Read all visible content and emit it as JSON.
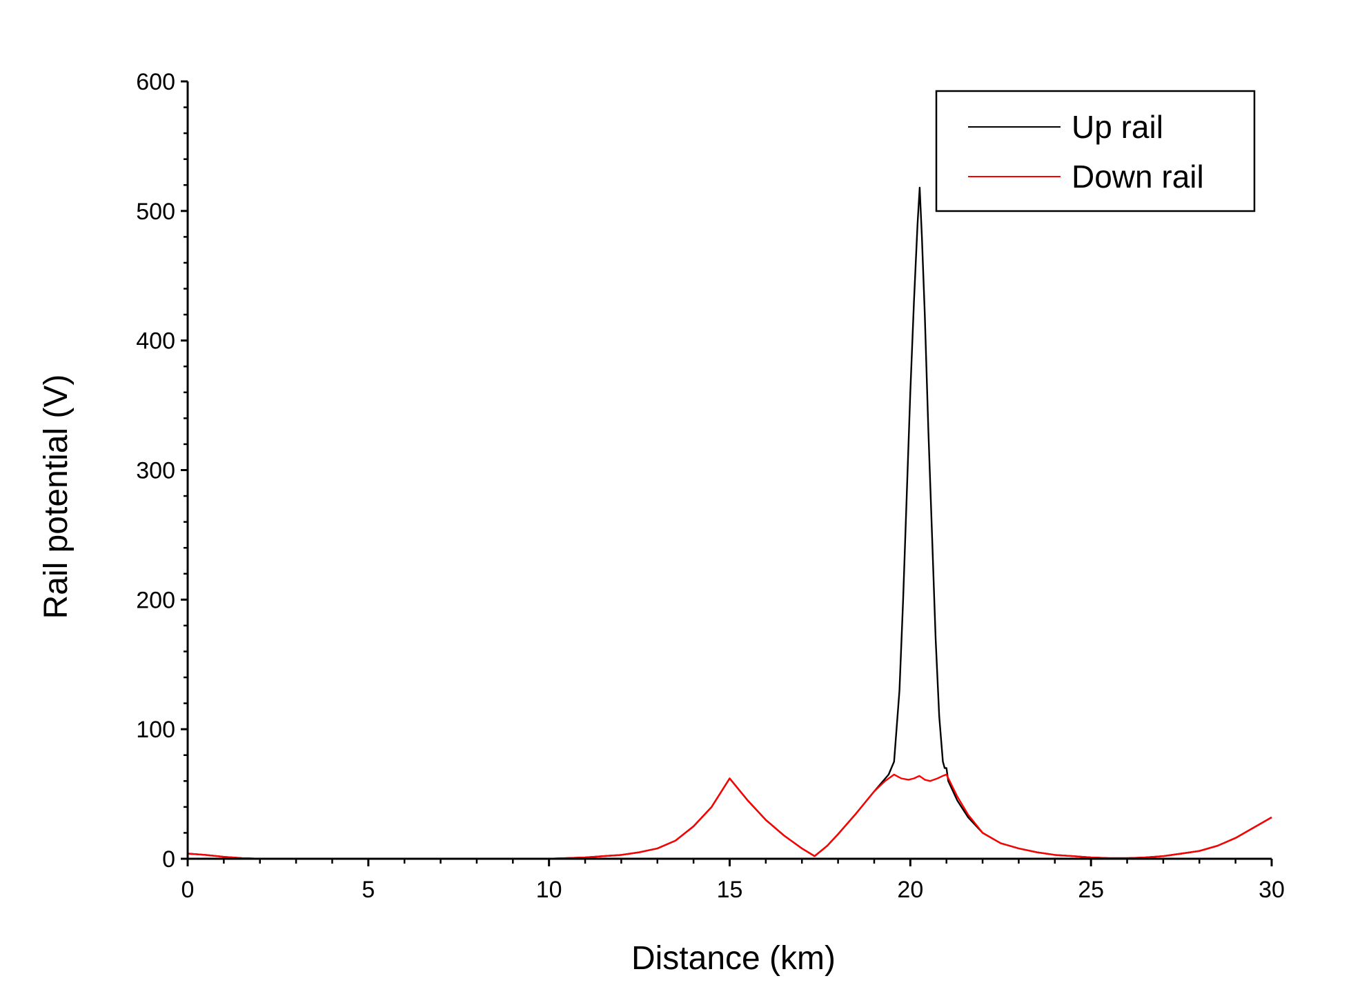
{
  "chart_data": {
    "type": "line",
    "title": "",
    "xlabel": "Distance (km)",
    "ylabel": "Rail potential (V)",
    "xlim": [
      0,
      30
    ],
    "ylim": [
      0,
      600
    ],
    "xticks": [
      0,
      5,
      10,
      15,
      20,
      25,
      30
    ],
    "yticks": [
      0,
      100,
      200,
      300,
      400,
      500,
      600
    ],
    "xtick_labels": [
      "0",
      "5",
      "10",
      "15",
      "20",
      "25",
      "30"
    ],
    "ytick_labels": [
      "0",
      "100",
      "200",
      "300",
      "400",
      "500",
      "600"
    ],
    "grid": false,
    "legend": "top-right",
    "series": [
      {
        "name": "Up rail",
        "color": "#000000",
        "x": [
          0,
          0.5,
          1,
          1.5,
          2,
          3,
          4,
          5,
          6,
          7,
          8,
          9,
          10,
          11,
          12,
          12.5,
          13,
          13.5,
          14,
          14.5,
          15,
          15.5,
          16,
          16.5,
          17,
          17.35,
          17.7,
          18,
          18.5,
          19,
          19.4,
          19.55,
          19.7,
          19.8,
          19.9,
          20.0,
          20.1,
          20.2,
          20.26,
          20.32,
          20.4,
          20.5,
          20.6,
          20.7,
          20.8,
          20.9,
          20.95,
          21.0,
          21.05,
          21.3,
          21.6,
          22,
          22.5,
          23,
          23.5,
          24,
          24.5,
          25,
          25.5,
          26,
          26.5,
          27,
          27.5,
          28,
          28.5,
          29,
          29.5,
          30
        ],
        "y": [
          4,
          3,
          1.5,
          0.5,
          0,
          0,
          0,
          0,
          0,
          0,
          0,
          0,
          0,
          1,
          3,
          5,
          8,
          14,
          25,
          40,
          62,
          45,
          30,
          18,
          8,
          2,
          10,
          19,
          35,
          52,
          65,
          75,
          130,
          200,
          280,
          360,
          430,
          490,
          518,
          480,
          420,
          330,
          250,
          170,
          110,
          75,
          70,
          70,
          60,
          45,
          32,
          20,
          12,
          8,
          5,
          3,
          2,
          1,
          0.5,
          0.5,
          1,
          2,
          4,
          6,
          10,
          16,
          24,
          32
        ]
      },
      {
        "name": "Down rail",
        "color": "#ff0000",
        "x": [
          0,
          0.5,
          1,
          1.5,
          2,
          3,
          4,
          5,
          6,
          7,
          8,
          9,
          10,
          11,
          12,
          12.5,
          13,
          13.5,
          14,
          14.5,
          15,
          15.5,
          16,
          16.5,
          17,
          17.35,
          17.7,
          18,
          18.5,
          19,
          19.3,
          19.55,
          19.75,
          19.95,
          20.1,
          20.25,
          20.4,
          20.55,
          20.75,
          20.9,
          21.0,
          21.3,
          21.6,
          22,
          22.5,
          23,
          23.5,
          24,
          24.5,
          25,
          25.5,
          26,
          26.5,
          27,
          27.5,
          28,
          28.5,
          29,
          29.5,
          30
        ],
        "y": [
          4,
          3,
          1.5,
          0.5,
          0,
          0,
          0,
          0,
          0,
          0,
          0,
          0,
          0,
          1,
          3,
          5,
          8,
          14,
          25,
          40,
          62,
          45,
          30,
          18,
          8,
          2,
          10,
          19,
          35,
          52,
          60,
          65,
          62,
          61,
          62,
          64,
          61,
          60,
          62,
          64,
          65,
          48,
          34,
          20,
          12,
          8,
          5,
          3,
          2,
          1,
          0.5,
          0.5,
          1,
          2,
          4,
          6,
          10,
          16,
          24,
          32
        ]
      }
    ]
  }
}
